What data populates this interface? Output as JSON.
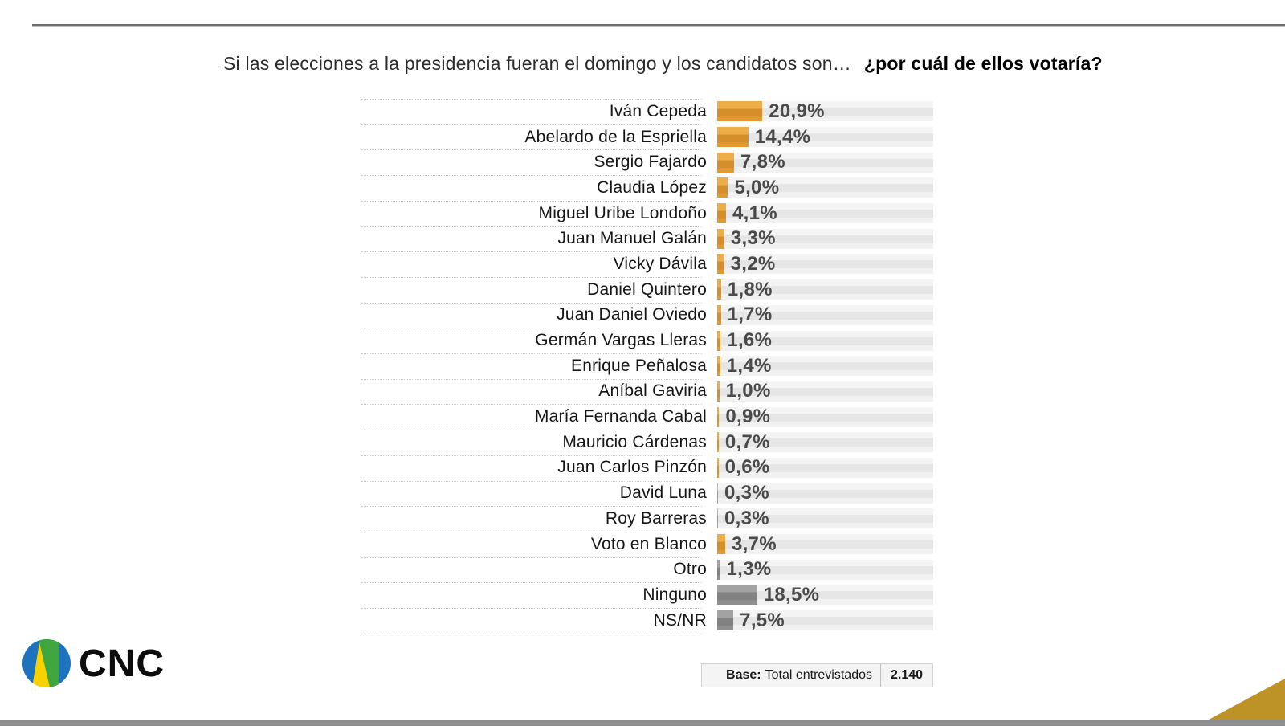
{
  "title": {
    "part1": "Si las elecciones a la presidencia fueran el domingo y los candidatos son…",
    "part2": "¿por cuál de ellos votaría?"
  },
  "chart_data": {
    "type": "bar",
    "orientation": "horizontal",
    "unit": "%",
    "xlim": [
      0,
      100
    ],
    "legend": "none",
    "grid": "dotted row separators in label column",
    "categories": [
      "Iván Cepeda",
      "Abelardo de la Espriella",
      "Sergio Fajardo",
      "Claudia López",
      "Miguel Uribe Londoño",
      "Juan Manuel Galán",
      "Vicky Dávila",
      "Daniel Quintero",
      "Juan Daniel Oviedo",
      "Germán Vargas Lleras",
      "Enrique Peñalosa",
      "Aníbal Gaviria",
      "María Fernanda Cabal",
      "Mauricio Cárdenas",
      "Juan Carlos Pinzón",
      "David Luna",
      "Roy Barreras",
      "Voto en Blanco",
      "Otro",
      "Ninguno",
      "NS/NR"
    ],
    "values": [
      20.9,
      14.4,
      7.8,
      5.0,
      4.1,
      3.3,
      3.2,
      1.8,
      1.7,
      1.6,
      1.4,
      1.0,
      0.9,
      0.7,
      0.6,
      0.3,
      0.3,
      3.7,
      1.3,
      18.5,
      7.5
    ],
    "value_labels": [
      "20,9%",
      "14,4%",
      "7,8%",
      "5,0%",
      "4,1%",
      "3,3%",
      "3,2%",
      "1,8%",
      "1,7%",
      "1,6%",
      "1,4%",
      "1,0%",
      "0,9%",
      "0,7%",
      "0,6%",
      "0,3%",
      "0,3%",
      "3,7%",
      "1,3%",
      "18,5%",
      "7,5%"
    ],
    "bar_color_keys": [
      "orange",
      "orange",
      "orange",
      "orange",
      "orange",
      "orange",
      "orange",
      "orange",
      "orange",
      "orange",
      "orange",
      "orange",
      "orange",
      "orange",
      "orange",
      "orange",
      "orange",
      "orange",
      "gray",
      "gray",
      "gray"
    ]
  },
  "colors": {
    "orange": "#E19A34",
    "gray": "#8F8F8F",
    "track": "#EBEBEB",
    "corner_triangle": "#BD9227",
    "logo_blue": "#1E73BE",
    "logo_green": "#3FA63F",
    "logo_yellow": "#F8D200"
  },
  "base_box": {
    "label_bold": "Base:",
    "label_text": "Total entrevistados",
    "value": "2.140"
  },
  "logo": {
    "text": "CNC"
  }
}
